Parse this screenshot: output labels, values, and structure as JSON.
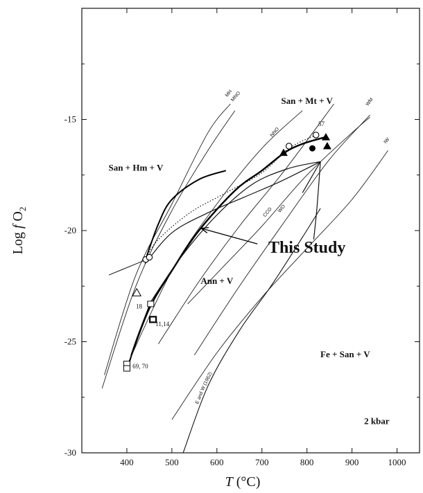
{
  "chart_data": {
    "type": "line",
    "title": "",
    "xlabel_main": "T",
    "xlabel_unit": "(°C)",
    "ylabel_main": "Log ",
    "ylabel_f": "f",
    "ylabel_o": "O",
    "ylabel_sub": "2",
    "xlim": [
      300,
      1050
    ],
    "ylim": [
      -30,
      -10
    ],
    "xticks": [
      400,
      500,
      600,
      700,
      800,
      900,
      1000
    ],
    "yticks": [
      -30,
      -25,
      -20,
      -15
    ],
    "field_labels": [
      {
        "text": "San + Mt + V",
        "x": 800,
        "y": -14.3
      },
      {
        "text": "San + Hm + V",
        "x": 420,
        "y": -17.3
      },
      {
        "text": "Ann + V",
        "x": 600,
        "y": -22.4
      },
      {
        "text": "Fe + San + V",
        "x": 885,
        "y": -25.7
      },
      {
        "text": "2 kbar",
        "x": 955,
        "y": -28.7
      }
    ],
    "annotation": {
      "text": "This Study",
      "label_x": 800,
      "label_y": -21.0,
      "arrow_from_x": 690,
      "arrow_from_y": -20.6,
      "arrow_to_x": 565,
      "arrow_to_y": -19.9
    },
    "buffers": [
      {
        "name": "MH",
        "points": [
          [
            350,
            -26.5
          ],
          [
            420,
            -22.0
          ],
          [
            500,
            -18.8
          ],
          [
            580,
            -15.6
          ],
          [
            630,
            -14.3
          ]
        ],
        "label_x": 623,
        "label_y": -14.0
      },
      {
        "name": "MNO",
        "points": [
          [
            345,
            -27.1
          ],
          [
            420,
            -22.5
          ],
          [
            500,
            -19.1
          ],
          [
            580,
            -16.4
          ],
          [
            640,
            -14.6
          ]
        ],
        "label_x": 636,
        "label_y": -14.2
      },
      {
        "name": "NNO",
        "points": [
          [
            395,
            -26.3
          ],
          [
            500,
            -21.8
          ],
          [
            600,
            -18.8
          ],
          [
            700,
            -16.3
          ],
          [
            790,
            -14.6
          ]
        ],
        "label_x": 723,
        "label_y": -15.8
      },
      {
        "name": "CCO",
        "points": [
          [
            470,
            -25.1
          ],
          [
            560,
            -22.3
          ],
          [
            650,
            -19.8
          ],
          [
            750,
            -17.3
          ],
          [
            860,
            -14.3
          ]
        ],
        "label_x": 707,
        "label_y": -19.4
      },
      {
        "name": "WO",
        "points": [
          [
            535,
            -23.3
          ],
          [
            620,
            -21.5
          ],
          [
            700,
            -19.8
          ],
          [
            800,
            -17.5
          ],
          [
            900,
            -15.6
          ],
          [
            940,
            -14.9
          ]
        ],
        "label_x": 740,
        "label_y": -19.2
      },
      {
        "name": "WM",
        "points": [
          [
            550,
            -25.6
          ],
          [
            650,
            -22.5
          ],
          [
            750,
            -19.6
          ],
          [
            850,
            -16.8
          ],
          [
            940,
            -14.8
          ]
        ],
        "label_x": 935,
        "label_y": -14.4
      },
      {
        "name": "IW",
        "points": [
          [
            500,
            -28.5
          ],
          [
            600,
            -25.5
          ],
          [
            700,
            -23.0
          ],
          [
            800,
            -20.8
          ],
          [
            900,
            -18.6
          ],
          [
            980,
            -16.4
          ]
        ],
        "label_x": 975,
        "label_y": -16.1
      }
    ],
    "curves": {
      "this_study_bold": [
        [
          410,
          -25.6
        ],
        [
          450,
          -23.5
        ],
        [
          500,
          -21.8
        ],
        [
          560,
          -20.0
        ],
        [
          640,
          -18.2
        ],
        [
          700,
          -17.3
        ],
        [
          750,
          -16.5
        ],
        [
          790,
          -16.1
        ],
        [
          840,
          -15.8
        ]
      ],
      "hm_mt_bold": [
        [
          440,
          -21.4
        ],
        [
          470,
          -19.7
        ],
        [
          500,
          -18.6
        ],
        [
          560,
          -17.7
        ],
        [
          620,
          -17.3
        ]
      ],
      "dotted": [
        [
          440,
          -21.3
        ],
        [
          470,
          -20.4
        ],
        [
          540,
          -19.2
        ],
        [
          620,
          -18.3
        ],
        [
          700,
          -17.4
        ],
        [
          760,
          -16.3
        ],
        [
          820,
          -15.7
        ]
      ],
      "reaction_upper": [
        [
          440,
          -21.5
        ],
        [
          500,
          -20.1
        ],
        [
          580,
          -19.2
        ],
        [
          660,
          -18.5
        ],
        [
          740,
          -17.8
        ],
        [
          830,
          -16.9
        ]
      ],
      "reaction_lower": [
        [
          450,
          -23.3
        ],
        [
          520,
          -21.2
        ],
        [
          600,
          -19.3
        ],
        [
          680,
          -17.9
        ],
        [
          760,
          -17.2
        ],
        [
          830,
          -16.9
        ]
      ],
      "reaction_branch1": [
        [
          830,
          -16.9
        ],
        [
          790,
          -18.3
        ]
      ],
      "reaction_branch2": [
        [
          830,
          -16.9
        ],
        [
          822,
          -19.0
        ],
        [
          815,
          -20.4
        ]
      ],
      "eugster_wones": [
        [
          525,
          -30.0
        ],
        [
          580,
          -27.0
        ],
        [
          650,
          -24.5
        ],
        [
          720,
          -22.5
        ],
        [
          790,
          -20.3
        ],
        [
          830,
          -19.0
        ]
      ],
      "eugster_wones_label": "E and W (1962)",
      "low_t_left": [
        [
          360,
          -22.0
        ],
        [
          420,
          -21.5
        ],
        [
          445,
          -21.3
        ]
      ],
      "low_t_lower": [
        [
          400,
          -26.3
        ],
        [
          420,
          -25.0
        ],
        [
          450,
          -23.4
        ]
      ]
    },
    "points": [
      {
        "shape": "open-circle",
        "x": 442,
        "y": -21.3
      },
      {
        "shape": "open-circle",
        "x": 450,
        "y": -21.2
      },
      {
        "shape": "open-circle",
        "x": 760,
        "y": -16.2
      },
      {
        "shape": "open-circle",
        "x": 820,
        "y": -15.7
      },
      {
        "shape": "filled-circle",
        "x": 812,
        "y": -16.3
      },
      {
        "shape": "filled-triangle",
        "x": 748,
        "y": -16.5
      },
      {
        "shape": "filled-triangle",
        "x": 842,
        "y": -15.8
      },
      {
        "shape": "filled-triangle",
        "x": 845,
        "y": -16.2
      },
      {
        "shape": "open-triangle",
        "x": 422,
        "y": -22.8
      },
      {
        "shape": "open-square",
        "x": 453,
        "y": -23.3
      },
      {
        "shape": "open-square-bold",
        "x": 458,
        "y": -24.0
      },
      {
        "shape": "open-square",
        "x": 400,
        "y": -26.0
      },
      {
        "shape": "open-square",
        "x": 400,
        "y": -26.2
      }
    ],
    "sample_labels": [
      {
        "text": "57",
        "x": 832,
        "y": -15.3
      },
      {
        "text": "18",
        "x": 427,
        "y": -23.5
      },
      {
        "text": "11,14",
        "x": 479,
        "y": -24.3
      },
      {
        "text": "69, 70",
        "x": 430,
        "y": -26.2
      }
    ]
  }
}
